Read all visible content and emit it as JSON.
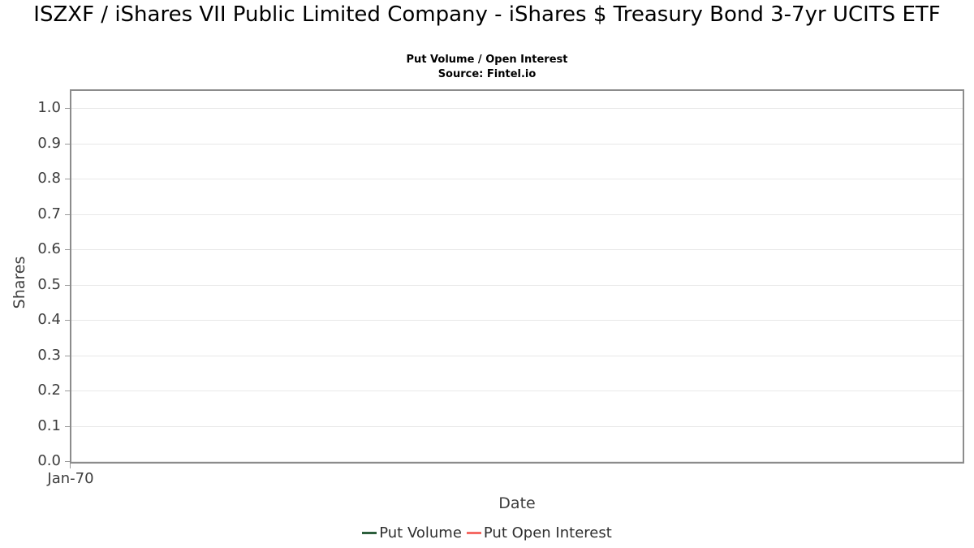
{
  "chart_data": {
    "type": "line",
    "title": "ISZXF / iShares VII Public Limited Company - iShares $ Treasury Bond 3-7yr UCITS ETF",
    "subtitle": "Put Volume / Open Interest",
    "source": "Source: Fintel.io",
    "xlabel": "Date",
    "ylabel": "Shares",
    "xticks": [
      "Jan-70"
    ],
    "yticks": [
      "0.0",
      "0.1",
      "0.2",
      "0.3",
      "0.4",
      "0.5",
      "0.6",
      "0.7",
      "0.8",
      "0.9",
      "1.0"
    ],
    "ylim": [
      0.0,
      1.05
    ],
    "grid": "horizontal-only",
    "legend_position": "bottom-center",
    "series": [
      {
        "name": "Put Volume",
        "color": "#2c5f3c",
        "x": [],
        "values": []
      },
      {
        "name": "Put Open Interest",
        "color": "#f56a64",
        "x": [],
        "values": []
      }
    ],
    "layout_hints": {
      "axis_border_color": "#8c8c8c",
      "grid_color": "#e8e8e8",
      "tick_color": "#9a9a9a",
      "plot_background": "#ffffff"
    }
  }
}
